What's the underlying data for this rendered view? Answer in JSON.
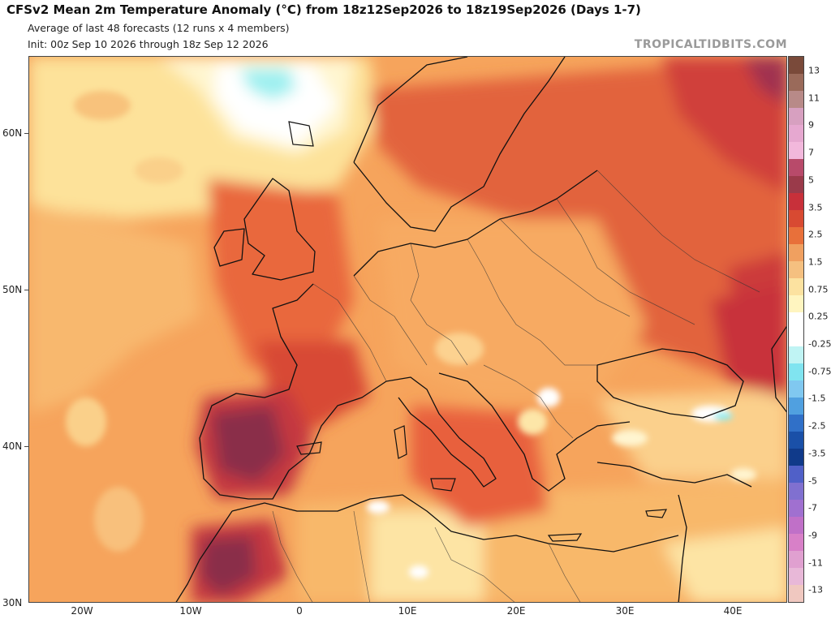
{
  "header": {
    "title": "CFSv2 Mean 2m Temperature Anomaly (°C) from 18z12Sep2026 to 18z19Sep2026 (Days 1-7)",
    "subtitle": "Average of last 48 forecasts (12 runs x 4 members)",
    "init_line": "Init: 00z Sep 10 2026 through 18z Sep 12 2026",
    "brand": "TROPICALTIDBITS.COM"
  },
  "axes": {
    "lat_labels": [
      "60N",
      "50N",
      "40N",
      "30N"
    ],
    "lon_labels": [
      "20W",
      "10W",
      "0",
      "10E",
      "20E",
      "30E",
      "40E"
    ]
  },
  "colorbar": {
    "labels": [
      "13",
      "11",
      "9",
      "7",
      "5",
      "3.5",
      "2.5",
      "1.5",
      "0.75",
      "0.25",
      "-0.25",
      "-0.75",
      "-1.5",
      "-2.5",
      "-3.5",
      "-5",
      "-7",
      "-9",
      "-11",
      "-13"
    ],
    "colors": [
      "#7a4a3a",
      "#9a6a5a",
      "#b88a88",
      "#d7a0c0",
      "#e6a8d0",
      "#f2b8dc",
      "#b84a6a",
      "#9a3a4a",
      "#c8303a",
      "#d84a32",
      "#e8703a",
      "#f0a060",
      "#f5c080",
      "#fce2a0",
      "#fff5c0",
      "#ffffff",
      "#ffffff",
      "#c0f4f4",
      "#80e4f0",
      "#80c8f0",
      "#50a0e0",
      "#3070c8",
      "#1a50a8",
      "#103a8a",
      "#5060c8",
      "#8070d0",
      "#a070d0",
      "#c070c8",
      "#d880c8",
      "#e0a0d0",
      "#e8b8d8",
      "#f0c8c0"
    ]
  }
}
